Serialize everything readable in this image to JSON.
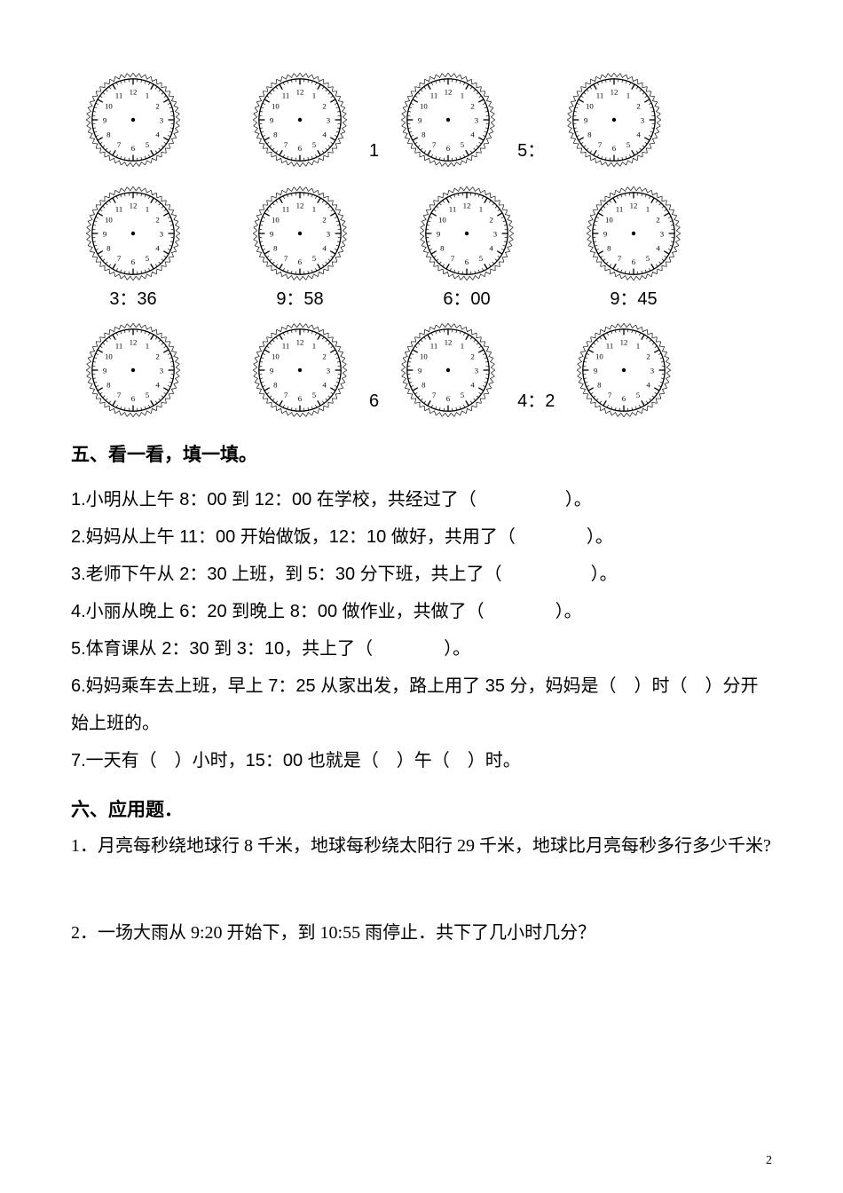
{
  "clock_face": {
    "stroke_color": "#000000",
    "stroke_width": 1.2,
    "background_color": "#ffffff",
    "number_fontsize": 8,
    "decor_stroke": "#000000"
  },
  "section4": {
    "rows": [
      {
        "type": "top",
        "cells": [
          {
            "label": ""
          },
          {
            "label": ""
          },
          {
            "before": "1",
            "label": ""
          },
          {
            "before": "5：",
            "label": ""
          }
        ]
      },
      {
        "type": "labeled",
        "cells": [
          {
            "label": "3：36"
          },
          {
            "label": "9：58"
          },
          {
            "label": "6：00"
          },
          {
            "label": "9：45"
          }
        ]
      },
      {
        "type": "bottom",
        "cells": [
          {
            "label": ""
          },
          {
            "label": ""
          },
          {
            "before": "6",
            "label": ""
          },
          {
            "before": "4：2",
            "label": ""
          }
        ]
      }
    ]
  },
  "section5": {
    "heading": "五、看一看，填一填。",
    "questions": [
      "1.小明从上午 8：00 到 12：00 在学校，共经过了（　　　　　）。",
      "2.妈妈从上午 11：00 开始做饭，12：10 做好，共用了（　　　　）。",
      "3.老师下午从 2：30 上班，到 5：30 分下班，共上了（　　　　　）。",
      "4.小丽从晚上 6：20 到晚上 8：00 做作业，共做了（　　　　）。",
      "5.体育课从 2：30 到 3：10，共上了（　　　　）。",
      "6.妈妈乘车去上班，早上 7：25 从家出发，路上用了 35 分，妈妈是（　）时（　）分开始上班的。",
      "7.一天有（　）小时，15：00 也就是（　）午（　）时。"
    ]
  },
  "section6": {
    "heading": "六、应用题．",
    "questions": [
      "1．月亮每秒绕地球行 8 千米，地球每秒绕太阳行 29 千米，地球比月亮每秒多行多少千米?",
      "2．一场大雨从 9:20 开始下，到 10:55 雨停止．共下了几小时几分？"
    ]
  },
  "page_number": "2"
}
